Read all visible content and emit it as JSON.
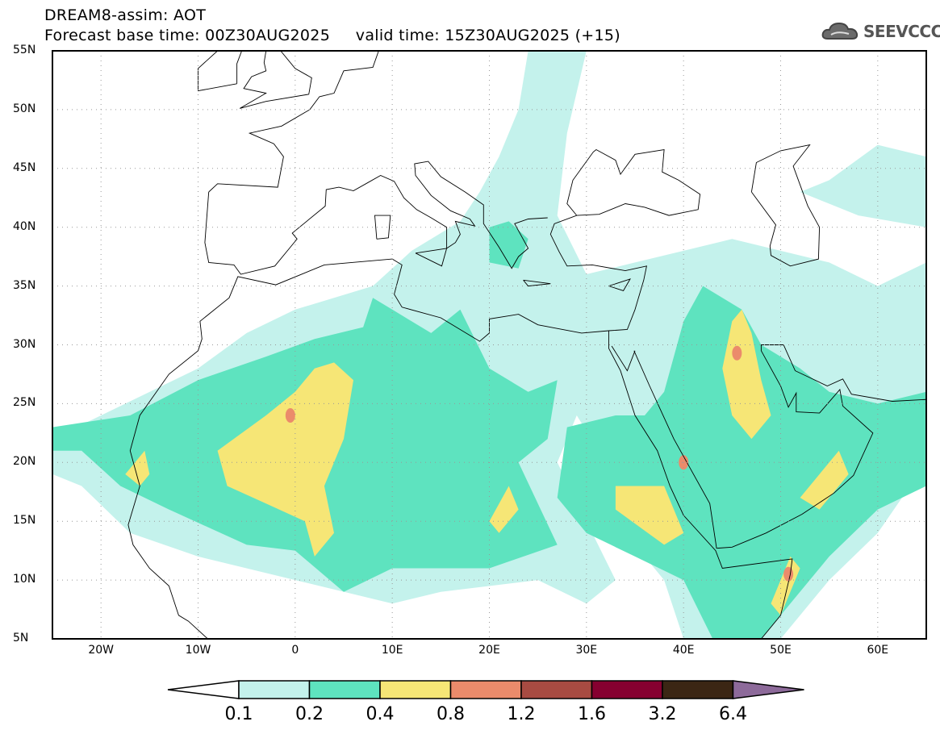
{
  "header": {
    "title": "DREAM8-assim: AOT",
    "subtitle": "Forecast base time: 00Z30AUG2025     valid time: 15Z30AUG2025 (+15)"
  },
  "logo": {
    "text": "SEEVCCC",
    "icon": "cloud-icon"
  },
  "axes": {
    "lat_labels": [
      "5N",
      "10N",
      "15N",
      "20N",
      "25N",
      "30N",
      "35N",
      "40N",
      "45N",
      "50N",
      "55N"
    ],
    "lat_values": [
      5,
      10,
      15,
      20,
      25,
      30,
      35,
      40,
      45,
      50,
      55
    ],
    "lon_labels": [
      "20W",
      "10W",
      "0",
      "10E",
      "20E",
      "30E",
      "40E",
      "50E",
      "60E"
    ],
    "lon_values": [
      -20,
      -10,
      0,
      10,
      20,
      30,
      40,
      50,
      60
    ],
    "lon_range": [
      -25,
      65
    ],
    "lat_range": [
      5,
      55
    ]
  },
  "colorbar": {
    "labels": [
      "0.1",
      "0.2",
      "0.4",
      "0.8",
      "1.2",
      "1.6",
      "3.2",
      "6.4"
    ],
    "colors": [
      "#ffffff",
      "#c4f2ec",
      "#5ee3bf",
      "#f6e676",
      "#eb8b6b",
      "#a84b42",
      "#860030",
      "#3b2614",
      "#8d6a9a"
    ]
  }
}
